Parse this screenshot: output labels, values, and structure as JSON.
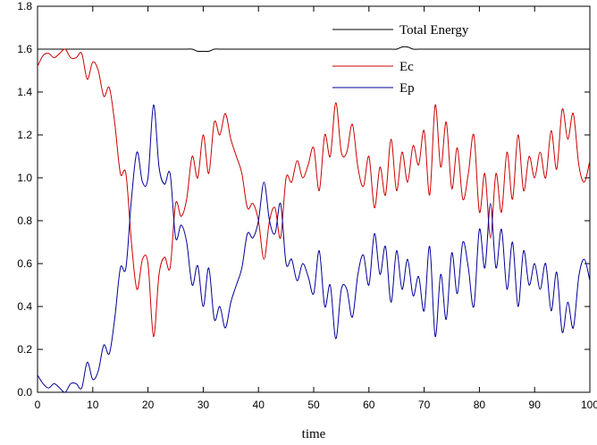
{
  "chart_data": {
    "type": "line",
    "title": "",
    "xlabel": "time",
    "ylabel": "",
    "xlim": [
      0,
      100
    ],
    "ylim": [
      0.0,
      1.8
    ],
    "x_ticks": [
      "0",
      "10",
      "20",
      "30",
      "40",
      "50",
      "60",
      "70",
      "80",
      "90",
      "100"
    ],
    "y_ticks": [
      "0.0",
      "0.2",
      "0.4",
      "0.6",
      "0.8",
      "1.0",
      "1.2",
      "1.4",
      "1.6",
      "1.8"
    ],
    "grid": false,
    "legend_position": "top-right",
    "x": [
      0,
      1,
      2,
      3,
      4,
      5,
      6,
      7,
      8,
      9,
      10,
      11,
      12,
      13,
      14,
      15,
      16,
      17,
      18,
      19,
      20,
      21,
      22,
      23,
      24,
      25,
      26,
      27,
      28,
      29,
      30,
      31,
      32,
      33,
      34,
      35,
      36,
      37,
      38,
      39,
      40,
      41,
      42,
      43,
      44,
      45,
      46,
      47,
      48,
      49,
      50,
      51,
      52,
      53,
      54,
      55,
      56,
      57,
      58,
      59,
      60,
      61,
      62,
      63,
      64,
      65,
      66,
      67,
      68,
      69,
      70,
      71,
      72,
      73,
      74,
      75,
      76,
      77,
      78,
      79,
      80,
      81,
      82,
      83,
      84,
      85,
      86,
      87,
      88,
      89,
      90,
      91,
      92,
      93,
      94,
      95,
      96,
      97,
      98,
      99,
      100
    ],
    "series": [
      {
        "name": "Total Energy",
        "color": "#000000",
        "values": [
          1.6,
          1.6,
          1.6,
          1.6,
          1.6,
          1.6,
          1.6,
          1.6,
          1.6,
          1.6,
          1.6,
          1.6,
          1.6,
          1.6,
          1.6,
          1.6,
          1.6,
          1.6,
          1.6,
          1.6,
          1.6,
          1.6,
          1.6,
          1.6,
          1.6,
          1.6,
          1.6,
          1.6,
          1.6,
          1.59,
          1.59,
          1.59,
          1.6,
          1.6,
          1.6,
          1.6,
          1.6,
          1.6,
          1.6,
          1.6,
          1.6,
          1.6,
          1.6,
          1.6,
          1.6,
          1.6,
          1.6,
          1.6,
          1.6,
          1.6,
          1.6,
          1.6,
          1.6,
          1.6,
          1.6,
          1.6,
          1.6,
          1.6,
          1.6,
          1.6,
          1.6,
          1.6,
          1.6,
          1.6,
          1.6,
          1.6,
          1.61,
          1.61,
          1.6,
          1.6,
          1.6,
          1.6,
          1.6,
          1.6,
          1.6,
          1.6,
          1.6,
          1.6,
          1.6,
          1.6,
          1.6,
          1.6,
          1.6,
          1.6,
          1.6,
          1.6,
          1.6,
          1.6,
          1.6,
          1.6,
          1.6,
          1.6,
          1.6,
          1.6,
          1.6,
          1.6,
          1.6,
          1.6,
          1.6,
          1.6,
          1.6
        ]
      },
      {
        "name": "Ec",
        "color": "#cc0000",
        "values": [
          1.52,
          1.57,
          1.58,
          1.56,
          1.58,
          1.6,
          1.56,
          1.56,
          1.58,
          1.46,
          1.54,
          1.5,
          1.38,
          1.42,
          1.25,
          1.02,
          1.02,
          0.7,
          0.48,
          0.62,
          0.6,
          0.26,
          0.55,
          0.63,
          0.58,
          0.88,
          0.82,
          0.9,
          1.1,
          1.0,
          1.2,
          1.02,
          1.26,
          1.2,
          1.3,
          1.18,
          1.1,
          1.02,
          0.86,
          0.88,
          0.8,
          0.62,
          0.8,
          0.86,
          0.72,
          1.0,
          0.98,
          1.08,
          1.0,
          1.06,
          1.14,
          0.94,
          1.2,
          1.1,
          1.35,
          1.12,
          1.12,
          1.25,
          1.05,
          0.96,
          1.1,
          0.86,
          1.05,
          0.92,
          1.18,
          0.94,
          1.12,
          0.98,
          1.15,
          1.06,
          1.22,
          0.92,
          1.34,
          1.05,
          1.26,
          0.95,
          1.14,
          0.9,
          1.02,
          1.2,
          0.84,
          1.02,
          0.72,
          1.02,
          0.84,
          1.12,
          0.9,
          1.2,
          0.94,
          1.1,
          1.0,
          1.12,
          1.0,
          1.22,
          1.04,
          1.32,
          1.18,
          1.3,
          1.06,
          0.98,
          1.08
        ]
      },
      {
        "name": "Ep",
        "color": "#000099",
        "values": [
          0.08,
          0.04,
          0.02,
          0.04,
          0.02,
          0.0,
          0.04,
          0.04,
          0.02,
          0.14,
          0.06,
          0.1,
          0.22,
          0.18,
          0.35,
          0.58,
          0.58,
          0.9,
          1.12,
          0.98,
          1.0,
          1.34,
          1.05,
          0.97,
          1.02,
          0.72,
          0.78,
          0.7,
          0.5,
          0.59,
          0.4,
          0.58,
          0.34,
          0.4,
          0.3,
          0.42,
          0.5,
          0.58,
          0.74,
          0.72,
          0.8,
          0.98,
          0.8,
          0.74,
          0.88,
          0.6,
          0.62,
          0.52,
          0.6,
          0.54,
          0.46,
          0.66,
          0.4,
          0.5,
          0.25,
          0.48,
          0.48,
          0.35,
          0.55,
          0.64,
          0.5,
          0.74,
          0.55,
          0.68,
          0.42,
          0.66,
          0.48,
          0.62,
          0.45,
          0.54,
          0.38,
          0.68,
          0.26,
          0.55,
          0.34,
          0.65,
          0.46,
          0.7,
          0.58,
          0.4,
          0.76,
          0.58,
          0.88,
          0.58,
          0.76,
          0.48,
          0.7,
          0.4,
          0.66,
          0.5,
          0.6,
          0.48,
          0.6,
          0.38,
          0.56,
          0.28,
          0.42,
          0.3,
          0.54,
          0.62,
          0.52
        ]
      }
    ]
  }
}
